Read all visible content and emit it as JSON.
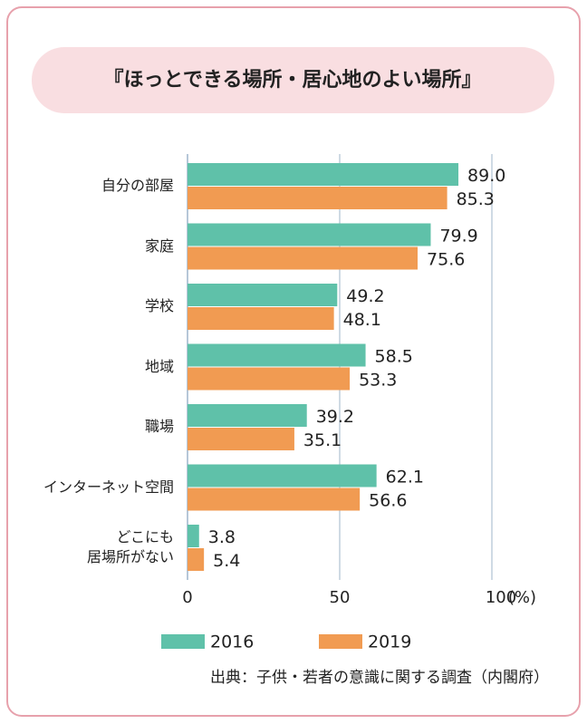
{
  "chart_data": {
    "type": "bar",
    "orientation": "horizontal",
    "title": "『ほっとできる場所・居心地のよい場所』",
    "categories": [
      "自分の部屋",
      "家庭",
      "学校",
      "地域",
      "職場",
      "インターネット空間",
      "どこにも\n居場所がない"
    ],
    "series": [
      {
        "name": "2016",
        "color": "#5fc1a9",
        "values": [
          89.0,
          79.9,
          49.2,
          58.5,
          39.2,
          62.1,
          3.8
        ],
        "value_labels": [
          "89.0",
          "79.9",
          "49.2",
          "58.5",
          "39.2",
          "62.1",
          "3.8"
        ]
      },
      {
        "name": "2019",
        "color": "#f19b52",
        "values": [
          85.3,
          75.6,
          48.1,
          53.3,
          35.1,
          56.6,
          5.4
        ],
        "value_labels": [
          "85.3",
          "75.6",
          "48.1",
          "53.3",
          "35.1",
          "56.6",
          "5.4"
        ]
      }
    ],
    "xlim": [
      0,
      100
    ],
    "xticks": [
      0,
      50,
      100
    ],
    "x_unit": "(%)",
    "grid": true,
    "source": "出典：子供・若者の意識に関する調査（内閣府）"
  }
}
